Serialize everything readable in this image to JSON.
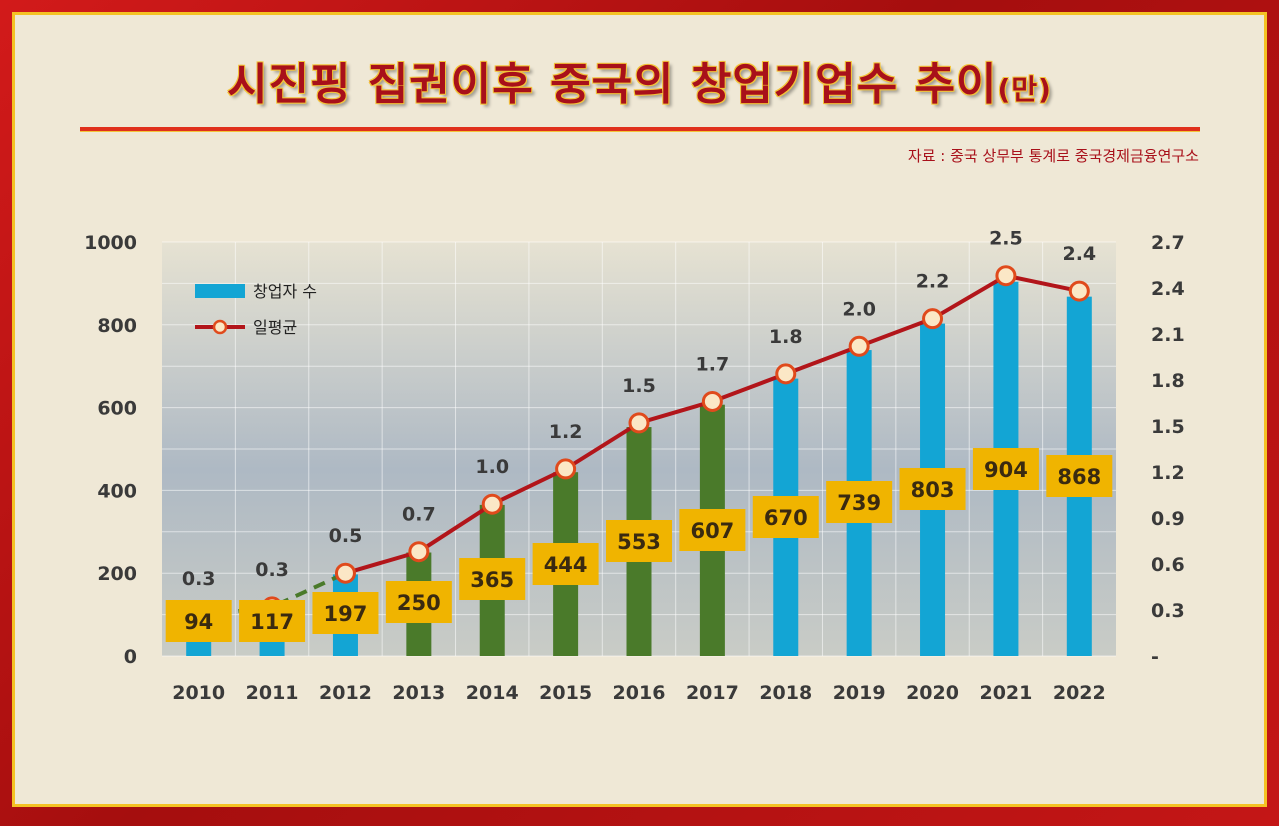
{
  "title": "시진핑 집권이후 중국의 창업기업수 추이",
  "title_unit": "(만)",
  "source": "자료 : 중국 상무부 통계로 중국경제금융연구소",
  "colors": {
    "bar_blue": "#13a5d4",
    "bar_green": "#4a7a2a",
    "line": "#b2151a",
    "box": "#f0b400"
  },
  "chart_data": {
    "type": "bar",
    "categories": [
      "2010",
      "2011",
      "2012",
      "2013",
      "2014",
      "2015",
      "2016",
      "2017",
      "2018",
      "2019",
      "2020",
      "2021",
      "2022"
    ],
    "series": [
      {
        "name": "창업자 수",
        "values": [
          94,
          117,
          197,
          250,
          365,
          444,
          553,
          607,
          670,
          739,
          803,
          904,
          868
        ],
        "value_labels": [
          "94",
          "117",
          "197",
          "250",
          "365",
          "444",
          "553",
          "607",
          "670",
          "739",
          "803",
          "904",
          "868"
        ],
        "highlighted_years": [
          "2013",
          "2014",
          "2015",
          "2016",
          "2017"
        ]
      },
      {
        "name": "일평균",
        "type": "line",
        "axis": "right",
        "values": [
          0.26,
          0.32,
          0.54,
          0.68,
          0.99,
          1.22,
          1.52,
          1.66,
          1.84,
          2.02,
          2.2,
          2.48,
          2.38
        ],
        "value_labels": [
          "0.3",
          "0.3",
          "0.5",
          "0.7",
          "1.0",
          "1.2",
          "1.5",
          "1.7",
          "1.8",
          "2.0",
          "2.2",
          "2.5",
          "2.4"
        ],
        "dashed_segment": [
          "2010",
          "2012"
        ]
      }
    ],
    "y_left": {
      "ylim": [
        0,
        1000
      ],
      "ticks": [
        "0",
        "200",
        "400",
        "600",
        "800",
        "1000"
      ]
    },
    "y_right": {
      "ylim": [
        0,
        2.7
      ],
      "ticks": [
        "-",
        "0.3",
        "0.6",
        "0.9",
        "1.2",
        "1.5",
        "1.8",
        "2.1",
        "2.4",
        "2.7"
      ]
    },
    "grid": true,
    "legend": "top-left"
  }
}
